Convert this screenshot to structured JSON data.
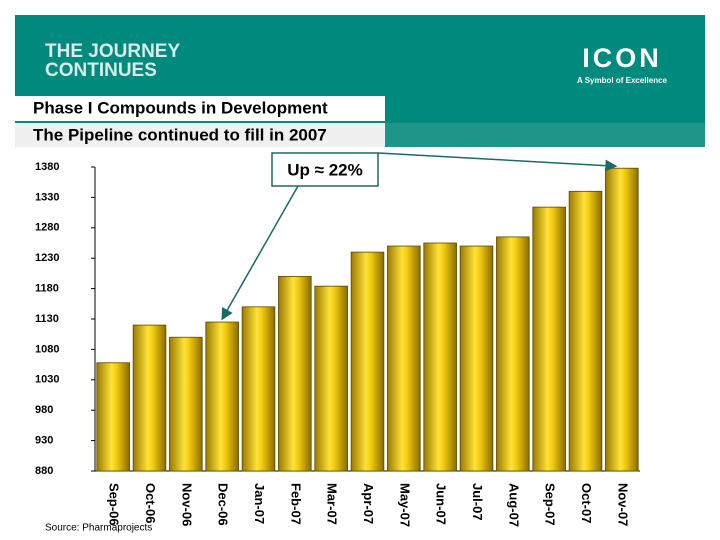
{
  "header": {
    "brand_line1": "THE JOURNEY",
    "brand_line2": "CONTINUES",
    "logo": "ICON",
    "tagline": "A Symbol of Excellence"
  },
  "chart_data": {
    "type": "bar",
    "title": "Phase I Compounds in Development",
    "subtitle": "The Pipeline continued to fill in 2007",
    "categories": [
      "Sep-06",
      "Oct-06",
      "Nov-06",
      "Dec-06",
      "Jan-07",
      "Feb-07",
      "Mar-07",
      "Apr-07",
      "May-07",
      "Jun-07",
      "Jul-07",
      "Aug-07",
      "Sep-07",
      "Oct-07",
      "Nov-07"
    ],
    "values": [
      1058,
      1120,
      1100,
      1125,
      1150,
      1200,
      1184,
      1240,
      1250,
      1255,
      1250,
      1265,
      1314,
      1340,
      1378
    ],
    "color": "#e8c000",
    "ylim": [
      880,
      1380
    ],
    "yticks": [
      880,
      930,
      980,
      1030,
      1080,
      1130,
      1180,
      1230,
      1280,
      1330,
      1380
    ],
    "annotation": "Up ≈ 22%",
    "source": "Source: Pharmaprojects"
  }
}
